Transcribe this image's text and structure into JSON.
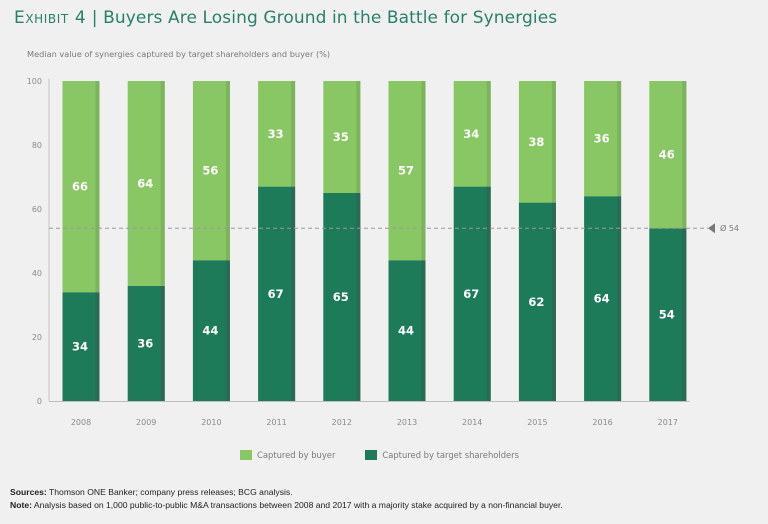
{
  "header": {
    "exhibit": "Exhibit 4",
    "separator": "|",
    "title": "Buyers Are Losing Ground in the Battle for Synergies"
  },
  "chart_data": {
    "type": "bar",
    "stacked": true,
    "title": "Buyers Are Losing Ground in the Battle for Synergies",
    "subtitle": "Median value of synergies captured by target shareholders and buyer (%)",
    "xlabel": "",
    "ylabel": "",
    "ylim": [
      0,
      100
    ],
    "yticks": [
      0,
      20,
      40,
      60,
      80,
      100
    ],
    "categories": [
      "2008",
      "2009",
      "2010",
      "2011",
      "2012",
      "2013",
      "2014",
      "2015",
      "2016",
      "2017"
    ],
    "series": [
      {
        "name": "Captured by target shareholders",
        "color": "#1e7b5a",
        "values": [
          34,
          36,
          44,
          67,
          65,
          44,
          67,
          62,
          64,
          54
        ]
      },
      {
        "name": "Captured by buyer",
        "color": "#89c664",
        "values": [
          66,
          64,
          56,
          33,
          35,
          57,
          34,
          38,
          36,
          46
        ]
      }
    ],
    "average": {
      "value": 54,
      "label": "Ø 54"
    },
    "legend": {
      "placement": "bottom"
    },
    "grid": false
  },
  "legend": {
    "buyer": "Captured by buyer",
    "target": "Captured by target shareholders"
  },
  "footer": {
    "sources_label": "Sources:",
    "sources_text": " Thomson ONE Banker; company press releases; BCG analysis.",
    "note_label": "Note:",
    "note_text": " Analysis based on 1,000 public-to-public M&A transactions between 2008 and 2017 with a majority stake acquired by a non-financial buyer."
  }
}
